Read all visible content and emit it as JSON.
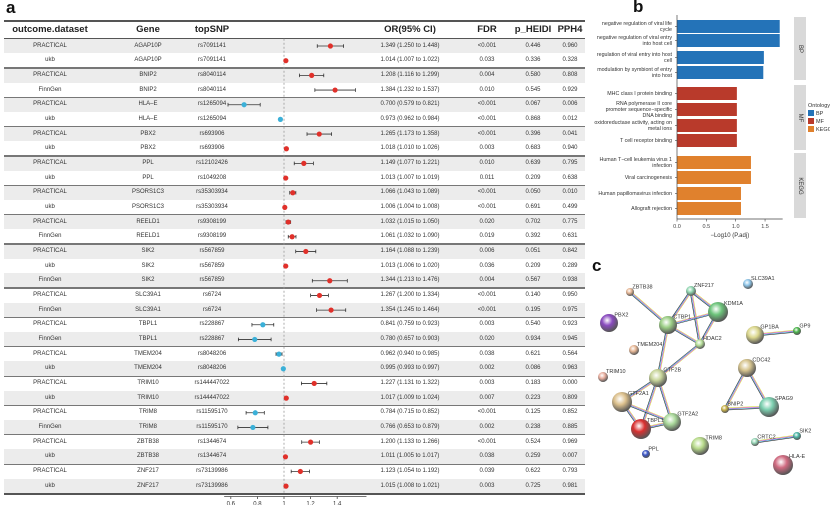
{
  "panels": {
    "a": "a",
    "b": "b",
    "c": "c"
  },
  "chart_data": [
    {
      "type": "table",
      "columns": [
        "outcome.dataset",
        "Gene",
        "topSNP",
        "",
        "OR(95% CI)",
        "FDR",
        "p_HEIDI",
        "PPH4"
      ],
      "forest_axis": {
        "ticks": [
          "0.6",
          "0.8",
          "1",
          "1.2",
          "1.4"
        ],
        "reference": 1,
        "range": [
          0.55,
          1.62
        ]
      },
      "colors": {
        "above_one": "#e0302a",
        "below_one": "#3bb0d8"
      },
      "rows": [
        [
          "PRACTICAL",
          "AGAP10P",
          "rs7091141",
          1.349,
          1.25,
          1.448,
          "<0.001",
          "0.446",
          "0.960"
        ],
        [
          "ukb",
          "AGAP10P",
          "rs7091141",
          1.014,
          1.007,
          1.022,
          "0.033",
          "0.336",
          "0.328"
        ],
        [
          "PRACTICAL",
          "BNIP2",
          "rs8040114",
          1.208,
          1.116,
          1.299,
          "0.004",
          "0.580",
          "0.808"
        ],
        [
          "FinnGen",
          "BNIP2",
          "rs8040114",
          1.384,
          1.232,
          1.537,
          "0.010",
          "0.545",
          "0.929"
        ],
        [
          "PRACTICAL",
          "HLA–E",
          "rs1265094",
          0.7,
          0.579,
          0.821,
          "<0.001",
          "0.067",
          "0.006"
        ],
        [
          "ukb",
          "HLA–E",
          "rs1265094",
          0.973,
          0.962,
          0.984,
          "<0.001",
          "0.868",
          "0.012"
        ],
        [
          "PRACTICAL",
          "PBX2",
          "rs693906",
          1.265,
          1.173,
          1.358,
          "<0.001",
          "0.396",
          "0.041"
        ],
        [
          "ukb",
          "PBX2",
          "rs693906",
          1.018,
          1.01,
          1.026,
          "0.003",
          "0.683",
          "0.940"
        ],
        [
          "PRACTICAL",
          "PPL",
          "rs12102426",
          1.149,
          1.077,
          1.221,
          "0.010",
          "0.639",
          "0.795"
        ],
        [
          "ukb",
          "PPL",
          "rs1049208",
          1.013,
          1.007,
          1.019,
          "0.011",
          "0.209",
          "0.638"
        ],
        [
          "PRACTICAL",
          "PSORS1C3",
          "rs35303934",
          1.066,
          1.043,
          1.089,
          "<0.001",
          "0.050",
          "0.010"
        ],
        [
          "ukb",
          "PSORS1C3",
          "rs35303934",
          1.006,
          1.004,
          1.008,
          "<0.001",
          "0.691",
          "0.499"
        ],
        [
          "PRACTICAL",
          "REELD1",
          "rs9308199",
          1.032,
          1.015,
          1.05,
          "0.020",
          "0.702",
          "0.775"
        ],
        [
          "FinnGen",
          "REELD1",
          "rs9308199",
          1.061,
          1.032,
          1.09,
          "0.019",
          "0.392",
          "0.631"
        ],
        [
          "PRACTICAL",
          "SIK2",
          "rs567859",
          1.164,
          1.088,
          1.239,
          "0.006",
          "0.051",
          "0.842"
        ],
        [
          "ukb",
          "SIK2",
          "rs567859",
          1.013,
          1.006,
          1.02,
          "0.036",
          "0.209",
          "0.289"
        ],
        [
          "FinnGen",
          "SIK2",
          "rs567859",
          1.344,
          1.213,
          1.476,
          "0.004",
          "0.567",
          "0.938"
        ],
        [
          "PRACTICAL",
          "SLC39A1",
          "rs6724",
          1.267,
          1.2,
          1.334,
          "<0.001",
          "0.140",
          "0.950"
        ],
        [
          "FinnGen",
          "SLC39A1",
          "rs6724",
          1.354,
          1.245,
          1.464,
          "<0.001",
          "0.195",
          "0.975"
        ],
        [
          "PRACTICAL",
          "TBPL1",
          "rs228867",
          0.841,
          0.759,
          0.923,
          "0.003",
          "0.540",
          "0.923"
        ],
        [
          "FinnGen",
          "TBPL1",
          "rs228867",
          0.78,
          0.657,
          0.903,
          "0.020",
          "0.934",
          "0.945"
        ],
        [
          "PRACTICAL",
          "TMEM204",
          "rs8048206",
          0.962,
          0.94,
          0.985,
          "0.038",
          "0.621",
          "0.564"
        ],
        [
          "ukb",
          "TMEM204",
          "rs8048206",
          0.995,
          0.993,
          0.997,
          "0.002",
          "0.086",
          "0.963"
        ],
        [
          "PRACTICAL",
          "TRIM10",
          "rs144447022",
          1.227,
          1.131,
          1.322,
          "0.003",
          "0.183",
          "0.000"
        ],
        [
          "ukb",
          "TRIM10",
          "rs144447022",
          1.017,
          1.009,
          1.024,
          "0.007",
          "0.223",
          "0.809"
        ],
        [
          "PRACTICAL",
          "TRIM8",
          "rs11595170",
          0.784,
          0.715,
          0.852,
          "<0.001",
          "0.125",
          "0.852"
        ],
        [
          "FinnGen",
          "TRIM8",
          "rs11595170",
          0.766,
          0.653,
          0.879,
          "0.002",
          "0.238",
          "0.885"
        ],
        [
          "PRACTICAL",
          "ZBTB38",
          "rs1344674",
          1.2,
          1.133,
          1.266,
          "<0.001",
          "0.524",
          "0.969"
        ],
        [
          "ukb",
          "ZBTB38",
          "rs1344674",
          1.011,
          1.005,
          1.017,
          "0.038",
          "0.259",
          "0.007"
        ],
        [
          "PRACTICAL",
          "ZNF217",
          "rs73139986",
          1.123,
          1.054,
          1.192,
          "0.039",
          "0.622",
          "0.793"
        ],
        [
          "ukb",
          "ZNF217",
          "rs73139986",
          1.015,
          1.008,
          1.021,
          "0.003",
          "0.725",
          "0.981"
        ]
      ]
    },
    {
      "type": "bar",
      "orientation": "horizontal",
      "xlabel": "−Log10 (P.adj)",
      "xlim": [
        0,
        1.8
      ],
      "xticks": [
        "0.0",
        "0.5",
        "1.0",
        "1.5"
      ],
      "legend": {
        "title": "Ontology",
        "position": "right",
        "items": [
          {
            "name": "BP",
            "color": "#2473b8"
          },
          {
            "name": "MF",
            "color": "#b93a2b"
          },
          {
            "name": "KEGG",
            "color": "#e0812d"
          }
        ]
      },
      "groups": [
        {
          "name": "BP",
          "color": "#2473b8",
          "bars": [
            {
              "label": "negative regulation of viral life cycle",
              "value": 1.75
            },
            {
              "label": "negative regulation of viral entry into host cell",
              "value": 1.75
            },
            {
              "label": "regulation of viral entry into host cell",
              "value": 1.48
            },
            {
              "label": "modulation by symbiont of entry into host",
              "value": 1.47
            }
          ]
        },
        {
          "name": "MF",
          "color": "#b93a2b",
          "bars": [
            {
              "label": "MHC class I protein binding",
              "value": 1.02
            },
            {
              "label": "RNA polymerase II core promoter sequence−specific DNA binding",
              "value": 1.02
            },
            {
              "label": "oxidoreductase activity, acting on metal ions",
              "value": 1.02
            },
            {
              "label": "T cell receptor binding",
              "value": 1.02
            }
          ]
        },
        {
          "name": "KEGG",
          "color": "#e0812d",
          "bars": [
            {
              "label": "Human T−cell leukemia virus 1 infection",
              "value": 1.26
            },
            {
              "label": "Viral carcinogenesis",
              "value": 1.26
            },
            {
              "label": "Human papillomavirus infection",
              "value": 1.09
            },
            {
              "label": "Allograft rejection",
              "value": 1.09
            }
          ]
        }
      ]
    },
    {
      "type": "network",
      "nodes": [
        "ZBTB38",
        "ZNF217",
        "SLC39A1",
        "KDM1A",
        "PBX2",
        "CTBP1",
        "HDAC2",
        "GP1BA",
        "GP9",
        "TMEM204",
        "TRIM10",
        "GTF2B",
        "CDC42",
        "GTF2A1",
        "BNIP2",
        "SPAG9",
        "GTF2A2",
        "TBPL1",
        "TRIM8",
        "CRTC2",
        "SIK2",
        "PPL",
        "HLA-E"
      ],
      "edges": [
        [
          "ZBTB38",
          "CTBP1"
        ],
        [
          "ZNF217",
          "CTBP1"
        ],
        [
          "ZNF217",
          "KDM1A"
        ],
        [
          "ZNF217",
          "HDAC2"
        ],
        [
          "CTBP1",
          "KDM1A"
        ],
        [
          "CTBP1",
          "HDAC2"
        ],
        [
          "KDM1A",
          "HDAC2"
        ],
        [
          "HDAC2",
          "GTF2B"
        ],
        [
          "CTBP1",
          "GTF2B"
        ],
        [
          "GTF2B",
          "GTF2A1"
        ],
        [
          "GTF2B",
          "TBPL1"
        ],
        [
          "GTF2B",
          "GTF2A2"
        ],
        [
          "GTF2A1",
          "TBPL1"
        ],
        [
          "GTF2A1",
          "GTF2A2"
        ],
        [
          "TBPL1",
          "GTF2A2"
        ],
        [
          "GP1BA",
          "GP9"
        ],
        [
          "CDC42",
          "BNIP2"
        ],
        [
          "CDC42",
          "SPAG9"
        ],
        [
          "BNIP2",
          "SPAG9"
        ],
        [
          "CRTC2",
          "SIK2"
        ]
      ]
    }
  ]
}
